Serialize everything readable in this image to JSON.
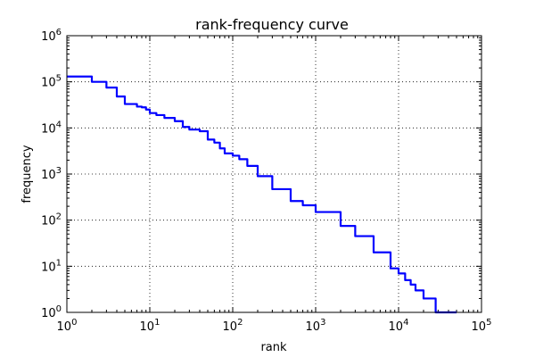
{
  "chart_data": {
    "type": "line",
    "title": "rank-frequency curve",
    "xlabel": "rank",
    "ylabel": "frequency",
    "xscale": "log",
    "yscale": "log",
    "xlim": [
      1,
      100000
    ],
    "ylim": [
      1,
      1000000
    ],
    "x_ticks": [
      1,
      10,
      100,
      1000,
      10000,
      100000
    ],
    "y_ticks": [
      1,
      10,
      100,
      1000,
      10000,
      100000,
      1000000
    ],
    "grid": true,
    "line_color": "#0000ff",
    "series": [
      {
        "x": [
          1,
          2,
          3,
          4,
          5,
          6,
          7,
          8,
          9,
          10,
          12,
          15,
          20,
          25,
          30,
          40,
          50,
          60,
          70,
          80,
          100,
          120,
          150,
          200,
          300,
          500,
          700,
          1000,
          2000,
          3000,
          5000,
          8000,
          10000,
          12000,
          14000,
          16000,
          20000,
          28000,
          50000
        ],
        "y": [
          130000,
          100000,
          75000,
          48000,
          33000,
          33000,
          29000,
          28000,
          25000,
          21000,
          19000,
          16500,
          14000,
          10500,
          9200,
          8500,
          5600,
          4800,
          3600,
          2800,
          2500,
          2100,
          1500,
          900,
          470,
          260,
          210,
          150,
          75,
          45,
          20,
          9,
          7,
          5,
          4,
          3,
          2,
          1,
          1
        ]
      }
    ]
  }
}
